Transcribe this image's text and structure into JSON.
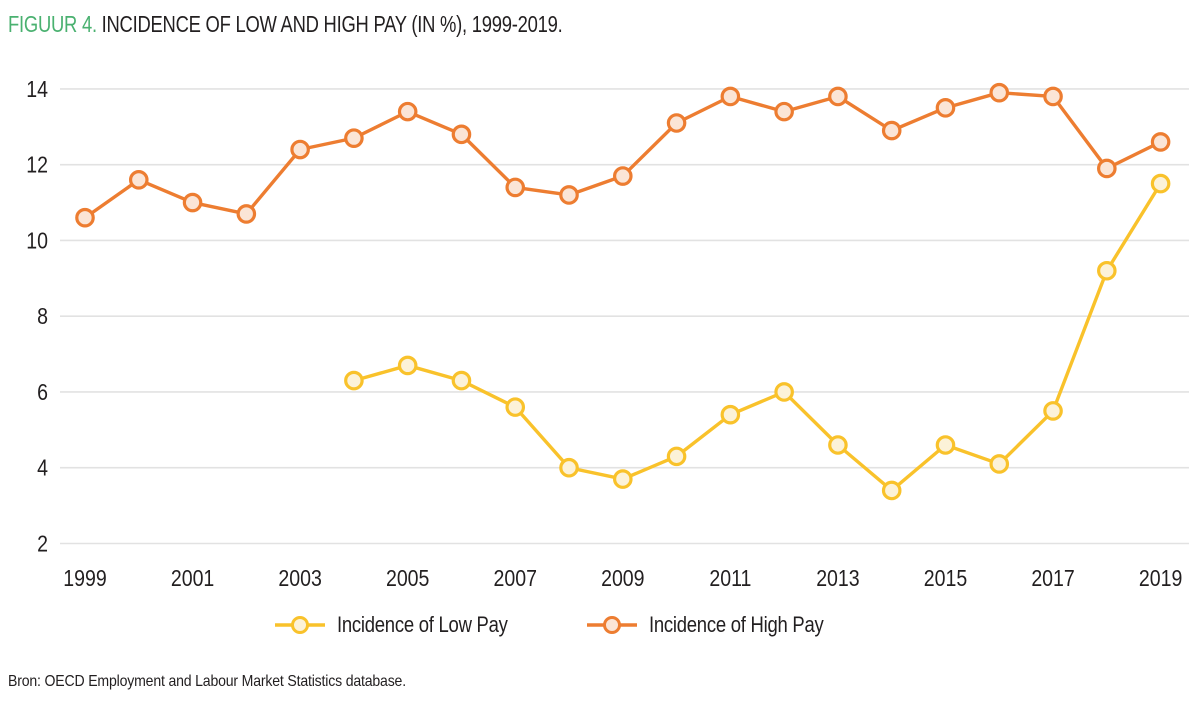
{
  "figure": {
    "label": "FIGUUR 4.",
    "title": "INCIDENCE OF LOW AND HIGH PAY (IN %), 1999-2019.",
    "source": "Bron: OECD Employment and Labour Market Statistics database."
  },
  "colors": {
    "figure_label_green": "#4ab170",
    "text_dark": "#221f20",
    "gridline": "#e2e2e2",
    "low_pay_line": "#f9c22b",
    "low_pay_marker_fill": "#fcf2d8",
    "high_pay_line": "#ed7d31",
    "high_pay_marker_fill": "#fbe5d6"
  },
  "chart_data": {
    "type": "line",
    "title": "FIGUUR 4. INCIDENCE OF LOW AND HIGH PAY (IN %), 1999-2019.",
    "xlabel": "",
    "ylabel": "",
    "x": [
      1999,
      2000,
      2001,
      2002,
      2003,
      2004,
      2005,
      2006,
      2007,
      2008,
      2009,
      2010,
      2011,
      2012,
      2013,
      2014,
      2015,
      2016,
      2017,
      2018,
      2019
    ],
    "x_tick_labels": [
      "1999",
      "2001",
      "2003",
      "2005",
      "2007",
      "2009",
      "2011",
      "2013",
      "2015",
      "2017",
      "2019"
    ],
    "y_ticks": [
      2,
      4,
      6,
      8,
      10,
      12,
      14
    ],
    "ylim": [
      2,
      14
    ],
    "grid": true,
    "legend_position": "bottom",
    "series": [
      {
        "name": "Incidence of Low Pay",
        "color": "#f9c22b",
        "marker_fill": "#fcf2d8",
        "values": [
          null,
          null,
          null,
          null,
          null,
          6.3,
          6.7,
          6.3,
          5.6,
          4.0,
          3.7,
          4.3,
          5.4,
          6.0,
          4.6,
          3.4,
          4.6,
          4.1,
          5.5,
          9.2,
          11.5
        ]
      },
      {
        "name": "Incidence of High Pay",
        "color": "#ed7d31",
        "marker_fill": "#fbe5d6",
        "values": [
          10.6,
          11.6,
          11.0,
          10.7,
          12.4,
          12.7,
          13.4,
          12.8,
          11.4,
          11.2,
          11.7,
          13.1,
          13.8,
          13.4,
          13.8,
          12.9,
          13.5,
          13.9,
          13.8,
          11.9,
          12.6
        ]
      }
    ]
  }
}
